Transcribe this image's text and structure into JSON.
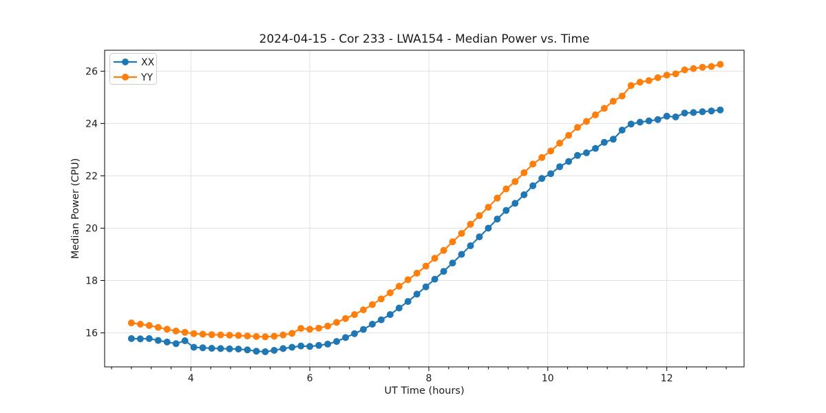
{
  "chart_data": {
    "type": "line",
    "title": "2024-04-15 - Cor 233 - LWA154 - Median Power vs. Time",
    "xlabel": "UT Time (hours)",
    "ylabel": "Median Power (CPU)",
    "xlim": [
      2.55,
      13.3
    ],
    "ylim": [
      14.7,
      26.8
    ],
    "xticks": [
      4,
      6,
      8,
      10,
      12
    ],
    "yticks": [
      16,
      18,
      20,
      22,
      24,
      26
    ],
    "x_minor_step": 0.33333,
    "grid": true,
    "legend": {
      "position": "upper left",
      "entries": [
        "XX",
        "YY"
      ]
    },
    "x": [
      3.0,
      3.15,
      3.3,
      3.45,
      3.6,
      3.75,
      3.9,
      4.05,
      4.2,
      4.35,
      4.5,
      4.65,
      4.8,
      4.95,
      5.1,
      5.25,
      5.4,
      5.55,
      5.7,
      5.85,
      6.0,
      6.15,
      6.3,
      6.45,
      6.6,
      6.75,
      6.9,
      7.05,
      7.2,
      7.35,
      7.5,
      7.65,
      7.8,
      7.95,
      8.1,
      8.25,
      8.4,
      8.55,
      8.7,
      8.85,
      9.0,
      9.15,
      9.3,
      9.45,
      9.6,
      9.75,
      9.9,
      10.05,
      10.2,
      10.35,
      10.5,
      10.65,
      10.8,
      10.95,
      11.1,
      11.25,
      11.4,
      11.55,
      11.7,
      11.85,
      12.0,
      12.15,
      12.3,
      12.45,
      12.6,
      12.75,
      12.9
    ],
    "series": [
      {
        "name": "XX",
        "color": "#1f77b4",
        "marker": "circle",
        "values": [
          15.78,
          15.77,
          15.78,
          15.71,
          15.65,
          15.59,
          15.7,
          15.45,
          15.43,
          15.41,
          15.4,
          15.39,
          15.38,
          15.35,
          15.3,
          15.28,
          15.33,
          15.4,
          15.45,
          15.5,
          15.48,
          15.52,
          15.57,
          15.67,
          15.82,
          15.97,
          16.13,
          16.33,
          16.5,
          16.7,
          16.95,
          17.2,
          17.48,
          17.76,
          18.05,
          18.35,
          18.67,
          19.0,
          19.33,
          19.67,
          20.0,
          20.35,
          20.68,
          20.95,
          21.28,
          21.62,
          21.9,
          22.08,
          22.35,
          22.55,
          22.78,
          22.88,
          23.05,
          23.28,
          23.4,
          23.75,
          23.98,
          24.05,
          24.1,
          24.15,
          24.28,
          24.25,
          24.4,
          24.42,
          24.45,
          24.48,
          24.52
        ]
      },
      {
        "name": "YY",
        "color": "#ff7f0e",
        "marker": "circle",
        "values": [
          16.38,
          16.33,
          16.28,
          16.21,
          16.14,
          16.07,
          16.02,
          15.97,
          15.95,
          15.93,
          15.92,
          15.91,
          15.9,
          15.88,
          15.86,
          15.85,
          15.87,
          15.92,
          15.98,
          16.17,
          16.14,
          16.18,
          16.26,
          16.4,
          16.55,
          16.7,
          16.88,
          17.08,
          17.3,
          17.53,
          17.78,
          18.03,
          18.28,
          18.55,
          18.85,
          19.15,
          19.48,
          19.8,
          20.15,
          20.48,
          20.8,
          21.15,
          21.5,
          21.78,
          22.12,
          22.45,
          22.7,
          22.95,
          23.25,
          23.55,
          23.85,
          24.08,
          24.33,
          24.58,
          24.85,
          25.05,
          25.45,
          25.58,
          25.64,
          25.75,
          25.85,
          25.9,
          26.05,
          26.1,
          26.15,
          26.18,
          26.26
        ]
      }
    ]
  },
  "colors": {
    "background": "#ffffff",
    "grid": "#e0e0e0",
    "spine": "#000000",
    "text": "#1a1a1a",
    "legend_border": "#cccccc"
  }
}
